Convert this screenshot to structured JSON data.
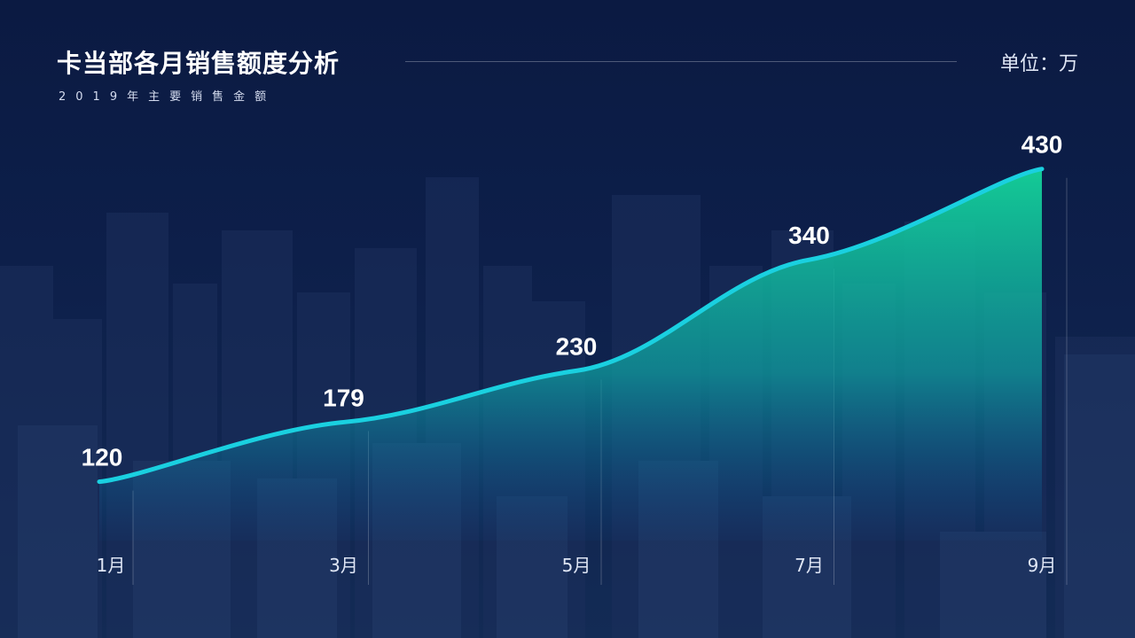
{
  "header": {
    "title": "卡当部各月销售额度分析",
    "subtitle": "2019年主要销售金额",
    "unit": "单位：万"
  },
  "colors": {
    "background": "#0b1940",
    "line": "#1ad0e0",
    "area_top": "#14d49a",
    "area_bottom": "#0b5fa8"
  },
  "chart_data": {
    "type": "area",
    "x": [
      1,
      3,
      5,
      7,
      9
    ],
    "x_tick_labels": [
      "1月",
      "3月",
      "5月",
      "7月",
      "9月"
    ],
    "values": [
      120,
      179,
      230,
      340,
      430
    ],
    "data_labels": [
      "120",
      "179",
      "230",
      "340",
      "430"
    ],
    "ylim": [
      0,
      450
    ],
    "smooth": true,
    "grid": false,
    "legend": "none"
  }
}
